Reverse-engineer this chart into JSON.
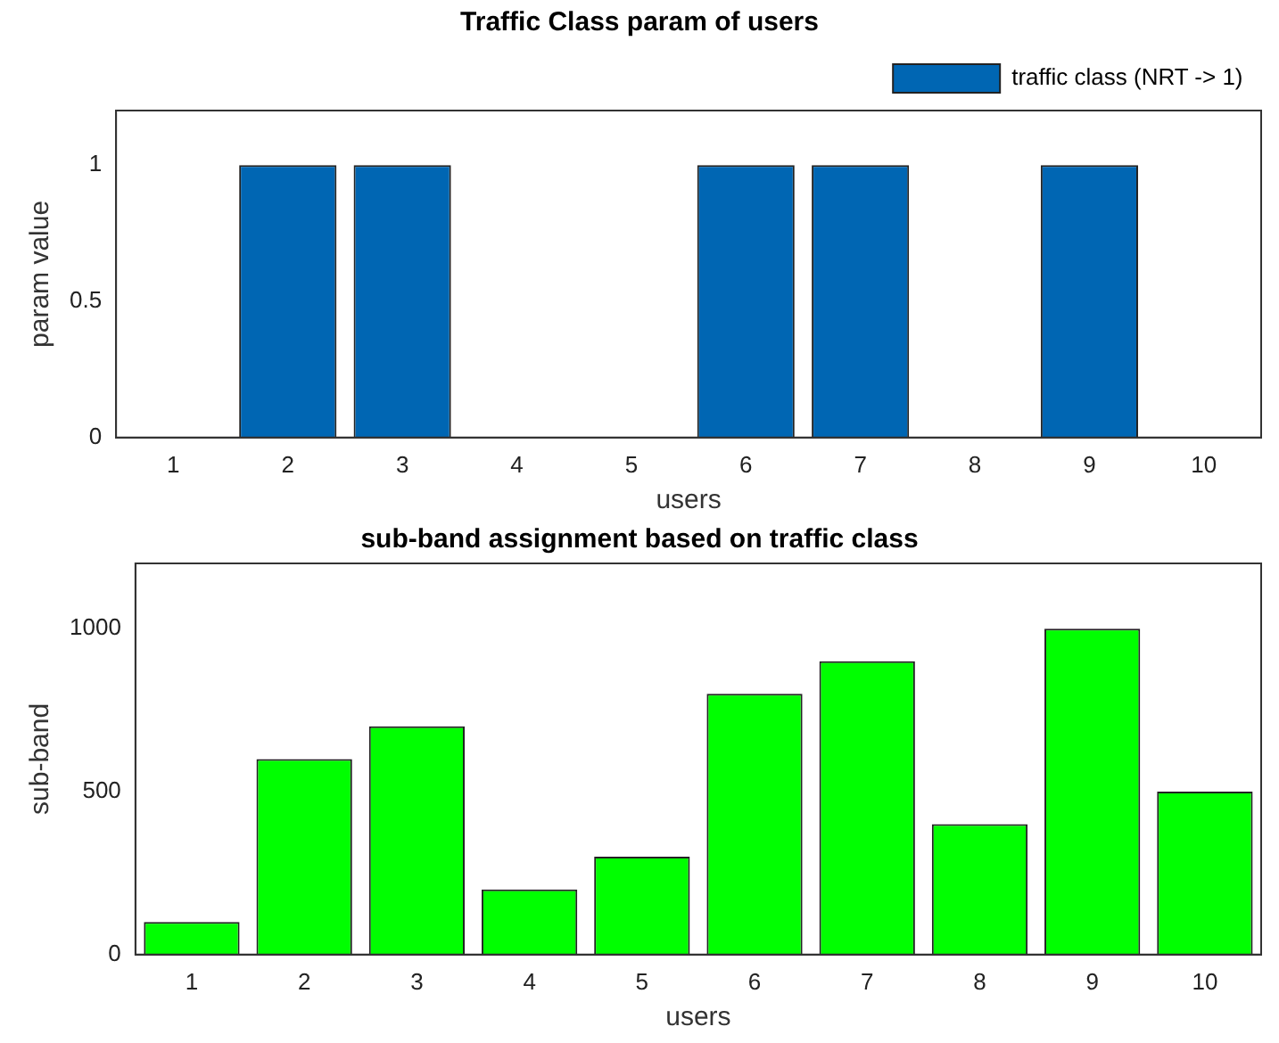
{
  "chart_data": [
    {
      "type": "bar",
      "title": "Traffic Class param of users",
      "xlabel": "users",
      "ylabel": "param value",
      "categories": [
        "1",
        "2",
        "3",
        "4",
        "5",
        "6",
        "7",
        "8",
        "9",
        "10"
      ],
      "series": [
        {
          "name": "traffic class (NRT -> 1)",
          "color": "#0066b3",
          "values": [
            0,
            1,
            1,
            0,
            0,
            1,
            1,
            0,
            1,
            0
          ]
        }
      ],
      "ylim": [
        0,
        1.2
      ],
      "yticks": [
        0,
        0.5,
        1
      ],
      "grid": false,
      "legend": "top right"
    },
    {
      "type": "bar",
      "title": "sub-band assignment based on traffic class",
      "xlabel": "users",
      "ylabel": "sub-band",
      "categories": [
        "1",
        "2",
        "3",
        "4",
        "5",
        "6",
        "7",
        "8",
        "9",
        "10"
      ],
      "series": [
        {
          "color": "#00ff00",
          "values": [
            100,
            600,
            700,
            200,
            300,
            800,
            900,
            400,
            1000,
            500
          ]
        }
      ],
      "ylim": [
        0,
        1200
      ],
      "yticks": [
        0,
        500,
        1000
      ],
      "grid": false
    }
  ]
}
